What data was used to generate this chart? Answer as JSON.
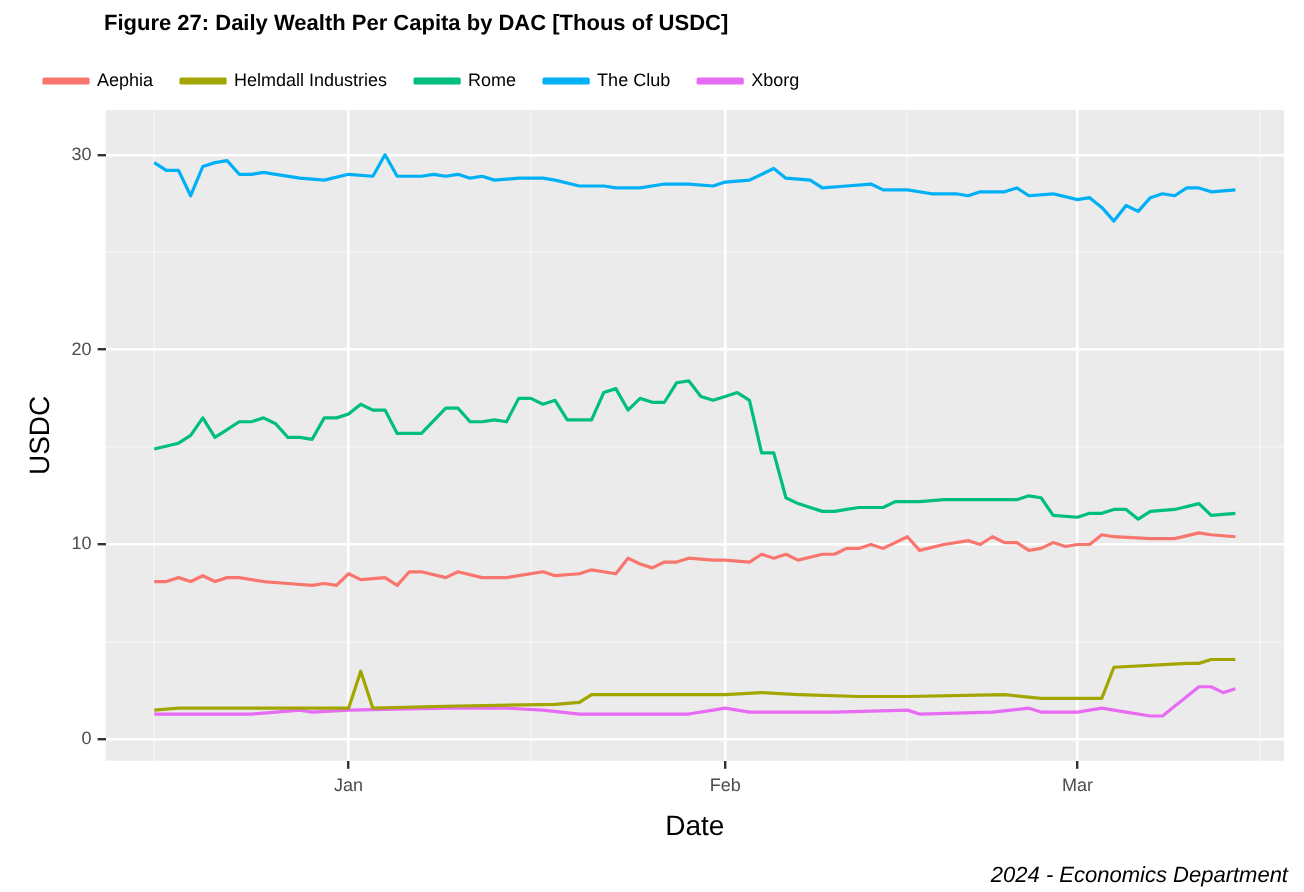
{
  "chart_data": {
    "type": "line",
    "title": "Figure 27: Daily Wealth Per Capita by DAC [Thous of USDC]",
    "xlabel": "Date",
    "ylabel": "USDC",
    "annotations": [
      "2024 - Economics Department"
    ],
    "legend": "top",
    "grid": true,
    "marker": "none",
    "line_style": "solid",
    "xlim": [
      "2023-12-12",
      "2024-03-18"
    ],
    "xticks": [
      {
        "value": "2023-12-16",
        "label": null
      },
      {
        "value": "2024-01-01",
        "label": "Jan"
      },
      {
        "value": "2024-01-16",
        "label": null
      },
      {
        "value": "2024-02-01",
        "label": "Feb"
      },
      {
        "value": "2024-02-16",
        "label": null
      },
      {
        "value": "2024-03-01",
        "label": "Mar"
      },
      {
        "value": "2024-03-16",
        "label": null
      }
    ],
    "ylim": [
      -1.1,
      32.3
    ],
    "yticks": [
      0,
      {
        "value": 5,
        "label": null
      },
      10,
      {
        "value": 15,
        "label": null
      },
      20,
      {
        "value": 25,
        "label": null
      },
      30
    ],
    "series": [
      {
        "name": "Aephia",
        "color": "#f8766d",
        "x": [
          "2023-12-16",
          "2023-12-17",
          "2023-12-18",
          "2023-12-19",
          "2023-12-20",
          "2023-12-21",
          "2023-12-22",
          "2023-12-23",
          "2023-12-25",
          "2023-12-27",
          "2023-12-29",
          "2023-12-30",
          "2023-12-31",
          "2024-01-01",
          "2024-01-02",
          "2024-01-04",
          "2024-01-05",
          "2024-01-06",
          "2024-01-07",
          "2024-01-09",
          "2024-01-10",
          "2024-01-12",
          "2024-01-14",
          "2024-01-15",
          "2024-01-17",
          "2024-01-18",
          "2024-01-20",
          "2024-01-21",
          "2024-01-23",
          "2024-01-24",
          "2024-01-25",
          "2024-01-26",
          "2024-01-27",
          "2024-01-28",
          "2024-01-29",
          "2024-01-31",
          "2024-02-01",
          "2024-02-03",
          "2024-02-04",
          "2024-02-05",
          "2024-02-06",
          "2024-02-07",
          "2024-02-09",
          "2024-02-10",
          "2024-02-11",
          "2024-02-12",
          "2024-02-13",
          "2024-02-14",
          "2024-02-16",
          "2024-02-17",
          "2024-02-19",
          "2024-02-21",
          "2024-02-22",
          "2024-02-23",
          "2024-02-24",
          "2024-02-25",
          "2024-02-26",
          "2024-02-27",
          "2024-02-28",
          "2024-02-29",
          "2024-03-01",
          "2024-03-02",
          "2024-03-03",
          "2024-03-04",
          "2024-03-07",
          "2024-03-09",
          "2024-03-11",
          "2024-03-12",
          "2024-03-14"
        ],
        "values": [
          8.1,
          8.1,
          8.3,
          8.1,
          8.4,
          8.1,
          8.3,
          8.3,
          8.1,
          8.0,
          7.9,
          8.0,
          7.9,
          8.5,
          8.2,
          8.3,
          7.9,
          8.6,
          8.6,
          8.3,
          8.6,
          8.3,
          8.3,
          8.4,
          8.6,
          8.4,
          8.5,
          8.7,
          8.5,
          9.3,
          9.0,
          8.8,
          9.1,
          9.1,
          9.3,
          9.2,
          9.2,
          9.1,
          9.5,
          9.3,
          9.5,
          9.2,
          9.5,
          9.5,
          9.8,
          9.8,
          10.0,
          9.8,
          10.4,
          9.7,
          10.0,
          10.2,
          10.0,
          10.4,
          10.1,
          10.1,
          9.7,
          9.8,
          10.1,
          9.9,
          10.0,
          10.0,
          10.5,
          10.4,
          10.3,
          10.3,
          10.6,
          10.5,
          10.4
        ]
      },
      {
        "name": "Helmdall Industries",
        "color": "#a3a500",
        "x": [
          "2023-12-16",
          "2023-12-18",
          "2023-12-23",
          "2024-01-01",
          "2024-01-02",
          "2024-01-03",
          "2024-01-09",
          "2024-01-18",
          "2024-01-20",
          "2024-01-21",
          "2024-01-31",
          "2024-02-01",
          "2024-02-04",
          "2024-02-07",
          "2024-02-12",
          "2024-02-15",
          "2024-02-16",
          "2024-02-24",
          "2024-02-27",
          "2024-03-03",
          "2024-03-04",
          "2024-03-10",
          "2024-03-11",
          "2024-03-12",
          "2024-03-14"
        ],
        "values": [
          1.5,
          1.6,
          1.6,
          1.6,
          3.5,
          1.6,
          1.7,
          1.8,
          1.9,
          2.3,
          2.3,
          2.3,
          2.4,
          2.3,
          2.2,
          2.2,
          2.2,
          2.3,
          2.1,
          2.1,
          3.7,
          3.9,
          3.9,
          4.1,
          4.1
        ]
      },
      {
        "name": "Rome",
        "color": "#00bf7d",
        "x": [
          "2023-12-16",
          "2023-12-18",
          "2023-12-19",
          "2023-12-20",
          "2023-12-21",
          "2023-12-22",
          "2023-12-23",
          "2023-12-24",
          "2023-12-25",
          "2023-12-26",
          "2023-12-27",
          "2023-12-28",
          "2023-12-29",
          "2023-12-30",
          "2023-12-31",
          "2024-01-01",
          "2024-01-02",
          "2024-01-03",
          "2024-01-04",
          "2024-01-05",
          "2024-01-07",
          "2024-01-09",
          "2024-01-10",
          "2024-01-11",
          "2024-01-12",
          "2024-01-13",
          "2024-01-14",
          "2024-01-15",
          "2024-01-16",
          "2024-01-17",
          "2024-01-18",
          "2024-01-19",
          "2024-01-21",
          "2024-01-22",
          "2024-01-23",
          "2024-01-24",
          "2024-01-25",
          "2024-01-26",
          "2024-01-27",
          "2024-01-28",
          "2024-01-29",
          "2024-01-30",
          "2024-01-31",
          "2024-02-01",
          "2024-02-02",
          "2024-02-03",
          "2024-02-04",
          "2024-02-05",
          "2024-02-06",
          "2024-02-07",
          "2024-02-08",
          "2024-02-09",
          "2024-02-10",
          "2024-02-11",
          "2024-02-12",
          "2024-02-14",
          "2024-02-15",
          "2024-02-17",
          "2024-02-19",
          "2024-02-22",
          "2024-02-25",
          "2024-02-26",
          "2024-02-27",
          "2024-02-28",
          "2024-03-01",
          "2024-03-02",
          "2024-03-03",
          "2024-03-04",
          "2024-03-05",
          "2024-03-06",
          "2024-03-07",
          "2024-03-09",
          "2024-03-11",
          "2024-03-12",
          "2024-03-14"
        ],
        "values": [
          14.9,
          15.2,
          15.6,
          16.5,
          15.5,
          15.9,
          16.3,
          16.3,
          16.5,
          16.2,
          15.5,
          15.5,
          15.4,
          16.5,
          16.5,
          16.7,
          17.2,
          16.9,
          16.9,
          15.7,
          15.7,
          17.0,
          17.0,
          16.3,
          16.3,
          16.4,
          16.3,
          17.5,
          17.5,
          17.2,
          17.4,
          16.4,
          16.4,
          17.8,
          18.0,
          16.9,
          17.5,
          17.3,
          17.3,
          18.3,
          18.4,
          17.6,
          17.4,
          17.6,
          17.8,
          17.4,
          14.7,
          14.7,
          12.4,
          12.1,
          11.9,
          11.7,
          11.7,
          11.8,
          11.9,
          11.9,
          12.2,
          12.2,
          12.3,
          12.3,
          12.3,
          12.5,
          12.4,
          11.5,
          11.4,
          11.6,
          11.6,
          11.8,
          11.8,
          11.3,
          11.7,
          11.8,
          12.1,
          11.5,
          11.6
        ]
      },
      {
        "name": "The Club",
        "color": "#00b0f6",
        "x": [
          "2023-12-16",
          "2023-12-17",
          "2023-12-18",
          "2023-12-19",
          "2023-12-20",
          "2023-12-21",
          "2023-12-22",
          "2023-12-23",
          "2023-12-24",
          "2023-12-25",
          "2023-12-26",
          "2023-12-28",
          "2023-12-30",
          "2024-01-01",
          "2024-01-03",
          "2024-01-04",
          "2024-01-05",
          "2024-01-07",
          "2024-01-08",
          "2024-01-09",
          "2024-01-10",
          "2024-01-11",
          "2024-01-12",
          "2024-01-13",
          "2024-01-15",
          "2024-01-17",
          "2024-01-18",
          "2024-01-20",
          "2024-01-22",
          "2024-01-23",
          "2024-01-25",
          "2024-01-27",
          "2024-01-29",
          "2024-01-31",
          "2024-02-01",
          "2024-02-03",
          "2024-02-05",
          "2024-02-06",
          "2024-02-08",
          "2024-02-09",
          "2024-02-11",
          "2024-02-13",
          "2024-02-14",
          "2024-02-16",
          "2024-02-18",
          "2024-02-20",
          "2024-02-21",
          "2024-02-22",
          "2024-02-24",
          "2024-02-25",
          "2024-02-26",
          "2024-02-28",
          "2024-03-01",
          "2024-03-02",
          "2024-03-03",
          "2024-03-04",
          "2024-03-05",
          "2024-03-06",
          "2024-03-07",
          "2024-03-08",
          "2024-03-09",
          "2024-03-10",
          "2024-03-11",
          "2024-03-12",
          "2024-03-14"
        ],
        "values": [
          29.6,
          29.2,
          29.2,
          27.9,
          29.4,
          29.6,
          29.7,
          29.0,
          29.0,
          29.1,
          29.0,
          28.8,
          28.7,
          29.0,
          28.9,
          30.0,
          28.9,
          28.9,
          29.0,
          28.9,
          29.0,
          28.8,
          28.9,
          28.7,
          28.8,
          28.8,
          28.7,
          28.4,
          28.4,
          28.3,
          28.3,
          28.5,
          28.5,
          28.4,
          28.6,
          28.7,
          29.3,
          28.8,
          28.7,
          28.3,
          28.4,
          28.5,
          28.2,
          28.2,
          28.0,
          28.0,
          27.9,
          28.1,
          28.1,
          28.3,
          27.9,
          28.0,
          27.7,
          27.8,
          27.3,
          26.6,
          27.4,
          27.1,
          27.8,
          28.0,
          27.9,
          28.3,
          28.3,
          28.1,
          28.2
        ]
      },
      {
        "name": "Xborg",
        "color": "#e76bf3",
        "x": [
          "2023-12-16",
          "2023-12-24",
          "2023-12-26",
          "2023-12-28",
          "2023-12-29",
          "2024-01-01",
          "2024-01-09",
          "2024-01-14",
          "2024-01-17",
          "2024-01-20",
          "2024-01-23",
          "2024-01-29",
          "2024-01-31",
          "2024-02-01",
          "2024-02-03",
          "2024-02-10",
          "2024-02-16",
          "2024-02-17",
          "2024-02-23",
          "2024-02-26",
          "2024-02-27",
          "2024-03-01",
          "2024-03-03",
          "2024-03-05",
          "2024-03-07",
          "2024-03-08",
          "2024-03-11",
          "2024-03-12",
          "2024-03-13",
          "2024-03-14"
        ],
        "values": [
          1.3,
          1.3,
          1.4,
          1.5,
          1.4,
          1.5,
          1.6,
          1.6,
          1.5,
          1.3,
          1.3,
          1.3,
          1.5,
          1.6,
          1.4,
          1.4,
          1.5,
          1.3,
          1.4,
          1.6,
          1.4,
          1.4,
          1.6,
          1.4,
          1.2,
          1.2,
          2.7,
          2.7,
          2.4,
          2.6
        ]
      }
    ]
  }
}
